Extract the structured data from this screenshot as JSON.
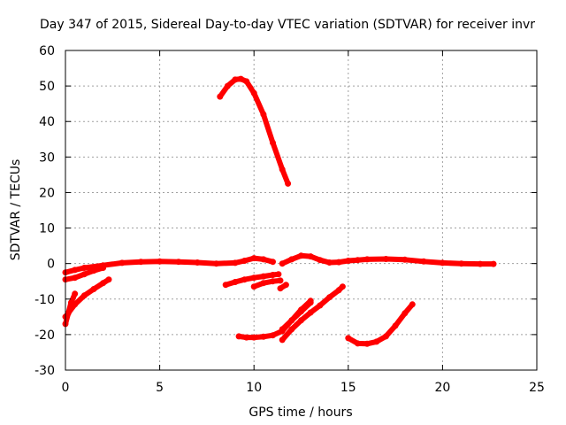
{
  "chart_data": {
    "type": "line",
    "title": "Day 347 of 2015, Sidereal Day-to-day VTEC variation (SDTVAR) for receiver invr",
    "xlabel": "GPS time / hours",
    "ylabel": "SDTVAR / TECUs",
    "xlim": [
      0,
      25
    ],
    "ylim": [
      -30,
      60
    ],
    "xticks": [
      0,
      5,
      10,
      15,
      20,
      25
    ],
    "yticks": [
      -30,
      -20,
      -10,
      0,
      10,
      20,
      30,
      40,
      50,
      60
    ],
    "grid": true,
    "marker_color": "#ff0000",
    "series": [
      {
        "name": "arc-main-zero",
        "x": [
          0.0,
          0.5,
          1.0,
          2.0,
          3.0,
          4.0,
          5.0,
          6.0,
          7.0,
          8.0,
          9.0,
          9.5,
          10.0,
          10.5,
          11.0
        ],
        "y": [
          -2.5,
          -1.8,
          -1.2,
          -0.5,
          0.2,
          0.5,
          0.6,
          0.5,
          0.3,
          0.0,
          0.2,
          0.8,
          1.5,
          1.2,
          0.5
        ]
      },
      {
        "name": "arc-lower-left",
        "x": [
          0.0,
          0.5,
          1.0,
          1.5,
          2.0
        ],
        "y": [
          -4.5,
          -4.0,
          -3.0,
          -2.0,
          -1.2
        ]
      },
      {
        "name": "arc-high",
        "x": [
          8.2,
          8.6,
          9.0,
          9.3,
          9.6,
          10.0,
          10.5,
          11.0,
          11.5,
          11.8
        ],
        "y": [
          47.0,
          50.0,
          51.8,
          52.0,
          51.3,
          48.0,
          42.0,
          34.0,
          26.5,
          22.5
        ]
      },
      {
        "name": "arc-steep-start",
        "x": [
          0.0,
          0.15,
          0.3,
          0.5
        ],
        "y": [
          -17.0,
          -14.0,
          -11.0,
          -8.5
        ]
      },
      {
        "name": "arc-left-rise",
        "x": [
          0.0,
          0.5,
          1.0,
          1.5,
          2.0,
          2.3
        ],
        "y": [
          -15.0,
          -11.5,
          -9.0,
          -7.2,
          -5.5,
          -4.5
        ]
      },
      {
        "name": "arc-mid-right",
        "x": [
          11.5,
          12.0,
          12.5,
          13.0,
          13.5,
          14.0,
          14.5,
          15.0,
          15.5,
          16.0,
          17.0,
          18.0,
          19.0,
          20.0,
          21.0,
          22.0,
          22.7
        ],
        "y": [
          0.0,
          1.2,
          2.2,
          2.0,
          1.0,
          0.3,
          0.4,
          0.8,
          1.0,
          1.2,
          1.3,
          1.1,
          0.6,
          0.2,
          0.0,
          -0.1,
          -0.1
        ]
      },
      {
        "name": "arc-mid-neg",
        "x": [
          8.5,
          9.0,
          9.5,
          10.0,
          10.5,
          11.0,
          11.3
        ],
        "y": [
          -6.0,
          -5.2,
          -4.5,
          -4.0,
          -3.6,
          -3.2,
          -3.0
        ]
      },
      {
        "name": "arc-mid-neg2",
        "x": [
          10.0,
          10.5,
          11.0,
          11.4
        ],
        "y": [
          -6.5,
          -5.5,
          -5.0,
          -4.8
        ]
      },
      {
        "name": "arc-mid-small",
        "x": [
          11.4,
          11.7
        ],
        "y": [
          -7.0,
          -6.0
        ]
      },
      {
        "name": "arc-bottom-mid",
        "x": [
          9.2,
          9.6,
          10.0,
          10.5,
          11.0,
          11.5,
          12.0,
          12.5,
          13.0
        ],
        "y": [
          -20.5,
          -20.8,
          -20.8,
          -20.6,
          -20.2,
          -19.0,
          -16.0,
          -13.0,
          -10.5
        ]
      },
      {
        "name": "arc-diag-1",
        "x": [
          11.5,
          12.0,
          12.5,
          13.0,
          13.5,
          14.0,
          14.5,
          14.7
        ],
        "y": [
          -21.5,
          -18.5,
          -16.0,
          -13.8,
          -11.8,
          -9.5,
          -7.5,
          -6.5
        ]
      },
      {
        "name": "arc-diag-2",
        "x": [
          11.5,
          12.0,
          12.5,
          13.0
        ],
        "y": [
          -18.5,
          -16.0,
          -13.5,
          -11.0
        ]
      },
      {
        "name": "arc-bottom-right",
        "x": [
          15.0,
          15.5,
          16.0,
          16.5,
          17.0,
          17.5,
          18.0,
          18.4
        ],
        "y": [
          -21.0,
          -22.5,
          -22.6,
          -22.0,
          -20.5,
          -17.5,
          -14.0,
          -11.5
        ]
      }
    ]
  }
}
